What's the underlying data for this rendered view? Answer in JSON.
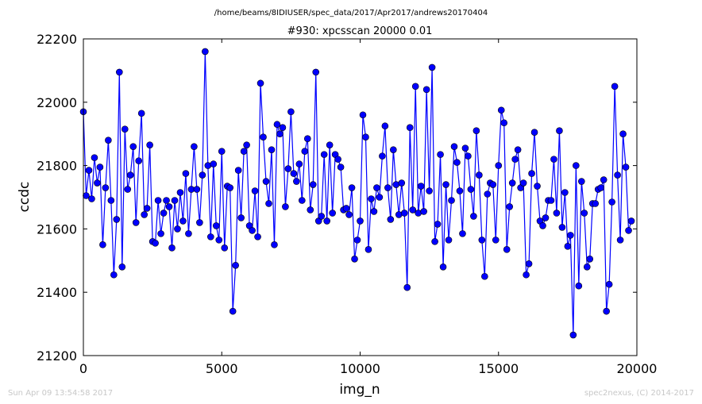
{
  "header": {
    "path": "/home/beams/8IDIUSER/spec_data/2017/Apr2017/andrews20170404"
  },
  "footer": {
    "left": "Sun Apr 09 13:54:58 2017",
    "right": "spec2nexus, (C) 2014-2017"
  },
  "colors": {
    "series": "#0000ff",
    "marker_edge": "#000000"
  },
  "chart_data": {
    "type": "line",
    "title": "#930: xpcsscan 20000 0.01",
    "xlabel": "img_n",
    "ylabel": "ccdc",
    "xlim": [
      0,
      20000
    ],
    "ylim": [
      21200,
      22200
    ],
    "xticks": [
      0,
      5000,
      10000,
      15000,
      20000
    ],
    "yticks": [
      21200,
      21400,
      21600,
      21800,
      22000,
      22200
    ],
    "grid": false,
    "legend": "none",
    "markers": "circle",
    "x_start": 0,
    "x_step": 100,
    "y": [
      21970,
      21705,
      21785,
      21695,
      21825,
      21745,
      21795,
      21550,
      21730,
      21880,
      21690,
      21455,
      21630,
      22095,
      21480,
      21915,
      21725,
      21770,
      21860,
      21620,
      21815,
      21965,
      21645,
      21665,
      21865,
      21560,
      21555,
      21690,
      21585,
      21650,
      21690,
      21670,
      21540,
      21690,
      21600,
      21715,
      21625,
      21775,
      21585,
      21725,
      21860,
      21725,
      21620,
      21770,
      22160,
      21800,
      21575,
      21805,
      21610,
      21565,
      21845,
      21540,
      21735,
      21730,
      21340,
      21485,
      21785,
      21635,
      21845,
      21865,
      21610,
      21595,
      21720,
      21575,
      22060,
      21890,
      21750,
      21680,
      21850,
      21550,
      21930,
      21900,
      21920,
      21670,
      21790,
      21970,
      21775,
      21750,
      21805,
      21690,
      21845,
      21885,
      21660,
      21740,
      22095,
      21625,
      21640,
      21835,
      21625,
      21865,
      21650,
      21835,
      21820,
      21795,
      21660,
      21665,
      21645,
      21730,
      21505,
      21565,
      21625,
      21960,
      21890,
      21535,
      21695,
      21655,
      21730,
      21700,
      21830,
      21925,
      21730,
      21630,
      21850,
      21740,
      21645,
      21745,
      21650,
      21415,
      21920,
      21660,
      22050,
      21650,
      21735,
      21655,
      22040,
      21720,
      22110,
      21560,
      21615,
      21835,
      21480,
      21740,
      21565,
      21690,
      21860,
      21810,
      21720,
      21585,
      21855,
      21830,
      21725,
      21640,
      21910,
      21770,
      21565,
      21450,
      21710,
      21745,
      21740,
      21565,
      21800,
      21975,
      21935,
      21535,
      21670,
      21745,
      21820,
      21850,
      21730,
      21745,
      21455,
      21490,
      21775,
      21905,
      21735,
      21625,
      21610,
      21635,
      21690,
      21690,
      21820,
      21650,
      21910,
      21605,
      21715,
      21545,
      21580,
      21265,
      21800,
      21420,
      21750,
      21650,
      21480,
      21505,
      21680,
      21680,
      21725,
      21730,
      21755,
      21340,
      21425,
      21685,
      22050,
      21770,
      21565,
      21900,
      21795,
      21595,
      21625
    ]
  }
}
